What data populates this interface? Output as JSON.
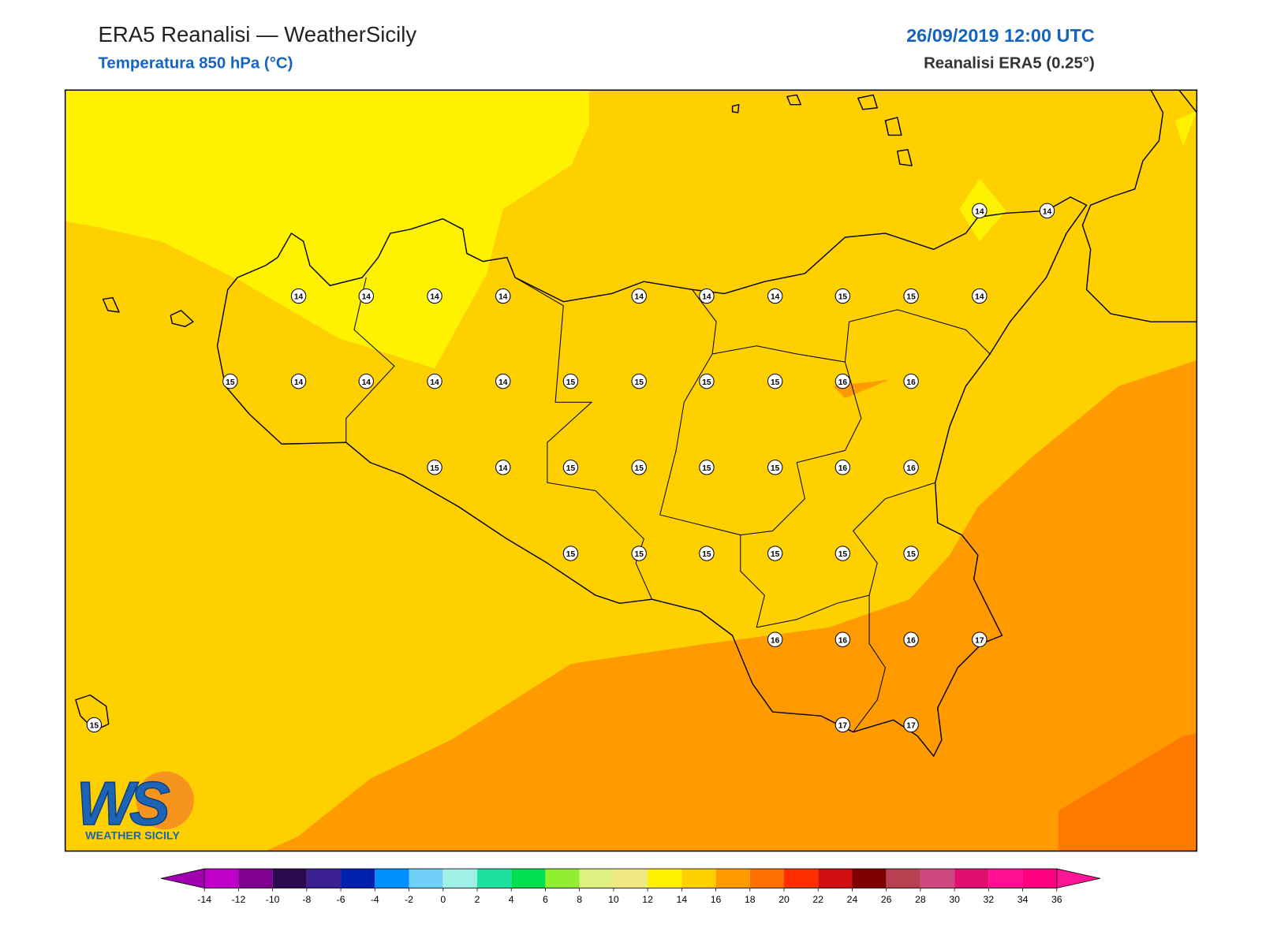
{
  "header": {
    "title": "ERA5 Reanalisi — WeatherSicily",
    "subtitle": "Temperatura 850 hPa (°C)",
    "datetime": "26/09/2019 12:00 UTC",
    "source": "Reanalisi ERA5 (0.25°)"
  },
  "stations": [
    14,
    14,
    14,
    14,
    14,
    14,
    14,
    14,
    14,
    15,
    15,
    14,
    15,
    14,
    14,
    14,
    14,
    15,
    15,
    15,
    15,
    16,
    16,
    15,
    14,
    15,
    15,
    15,
    15,
    16,
    16,
    15,
    15,
    15,
    15,
    15,
    15,
    16,
    16,
    16,
    17,
    15,
    17,
    17
  ],
  "colorbar": {
    "ticks": [
      -14,
      -12,
      -10,
      -8,
      -6,
      -4,
      -2,
      0,
      2,
      4,
      6,
      8,
      10,
      12,
      14,
      16,
      18,
      20,
      22,
      24,
      26,
      28,
      30,
      32,
      34,
      36
    ],
    "colors": [
      "#c000c8",
      "#800090",
      "#2a0a50",
      "#3a2090",
      "#0020b0",
      "#0090ff",
      "#70d0f8",
      "#a0f0e8",
      "#20e0a0",
      "#00e050",
      "#90f030",
      "#e0f080",
      "#f0e880",
      "#fff000",
      "#ffd000",
      "#ff9a00",
      "#ff7000",
      "#ff3000",
      "#d01010",
      "#800000",
      "#b84050",
      "#d04880",
      "#e01070",
      "#ff1090",
      "#ff0080"
    ],
    "under": "#a000b0",
    "over": "#ff1493"
  },
  "logo": {
    "letters": "WS",
    "name": "WEATHER SICILY"
  }
}
